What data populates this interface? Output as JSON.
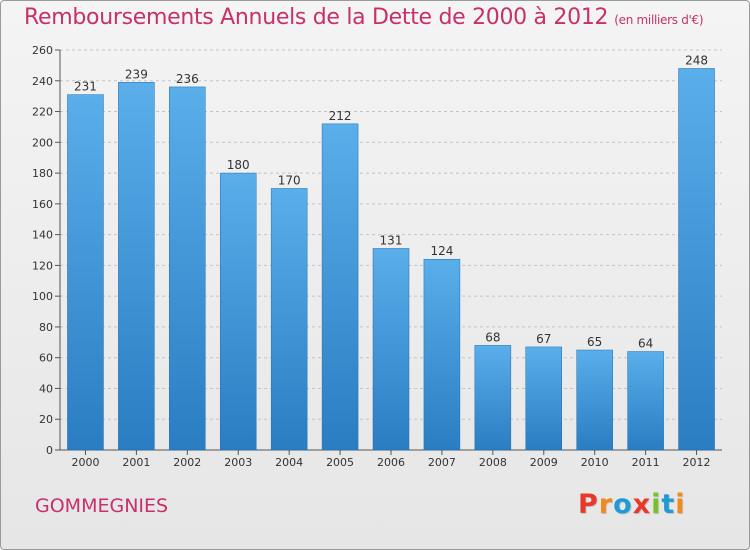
{
  "chart_data": {
    "type": "bar",
    "title": "Remboursements Annuels de la Dette de 2000 à 2012",
    "subtitle": "(en milliers d'€)",
    "categories": [
      "2000",
      "2001",
      "2002",
      "2003",
      "2004",
      "2005",
      "2006",
      "2007",
      "2008",
      "2009",
      "2010",
      "2011",
      "2012"
    ],
    "values": [
      231,
      239,
      236,
      180,
      170,
      212,
      131,
      124,
      68,
      67,
      65,
      64,
      248
    ],
    "ylim": [
      0,
      260
    ],
    "yticks": [
      0,
      20,
      40,
      60,
      80,
      100,
      120,
      140,
      160,
      180,
      200,
      220,
      240,
      260
    ],
    "grid": true,
    "xlabel": "",
    "ylabel": "",
    "bar_color": "#3a92d8"
  },
  "footer": {
    "commune": "GOMMEGNIES",
    "logo_letters": [
      "P",
      "r",
      "o",
      "x",
      "i",
      "t",
      "i"
    ],
    "logo_colors": [
      "#e8382a",
      "#f08a1c",
      "#1e9ad6",
      "#e8382a",
      "#7bbf2a",
      "#1e9ad6",
      "#f08a1c"
    ]
  }
}
